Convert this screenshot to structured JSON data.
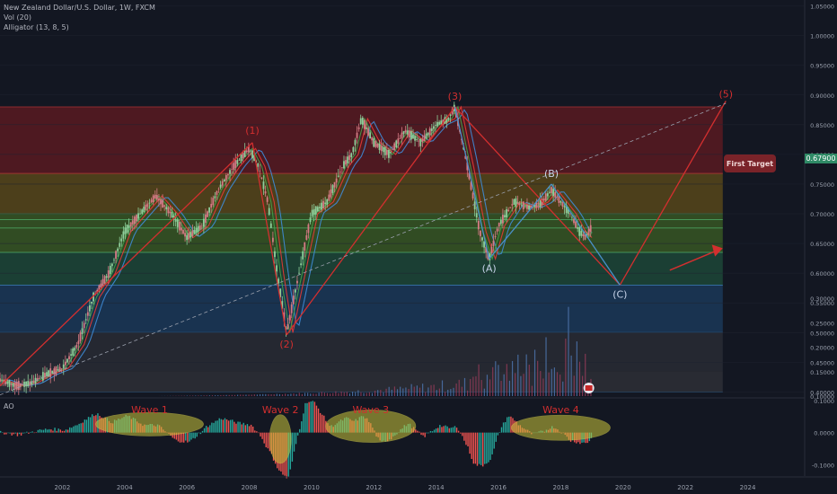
{
  "legend": {
    "symbol": "New Zealand Dollar/U.S. Dollar, 1W, FXCM",
    "volume": "Vol (20)",
    "alligator": "Alligator (13, 8, 5)"
  },
  "ao_panel": {
    "label": "AO"
  },
  "colors": {
    "background": "#131722",
    "wave_red": "#d32f2f",
    "wave_blue": "#4a90c8",
    "ellipse_fill": "#c9c43a",
    "alligator_jaw": "#3f8bd6",
    "alligator_teeth": "#e53935",
    "alligator_lips": "#43a047"
  },
  "annotations": {
    "waves": [
      {
        "label": "(1)",
        "x": 2008.1,
        "y": 0.8198
      },
      {
        "label": "(2)",
        "x": 2009.2,
        "y": 0.496
      },
      {
        "label": "(3)",
        "x": 2014.6,
        "y": 0.88
      },
      {
        "label": "(A)",
        "x": 2015.7,
        "y": 0.624
      },
      {
        "label": "(B)",
        "x": 2017.7,
        "y": 0.75
      },
      {
        "label": "(C)",
        "x": 2019.9,
        "y": 0.58
      },
      {
        "label": "(5)",
        "x": 2023.3,
        "y": 0.89
      }
    ],
    "target_label": "First Target",
    "ao_waves": [
      {
        "label": "Wave 1",
        "x": 2004.8
      },
      {
        "label": "Wave 2",
        "x": 2009.0
      },
      {
        "label": "Wave 3",
        "x": 2011.9
      },
      {
        "label": "Wave 4",
        "x": 2018.0
      }
    ]
  },
  "chart_data": [
    {
      "type": "line",
      "title": "New Zealand Dollar/U.S. Dollar, 1W, FXCM",
      "xlim": [
        2000.0,
        2025.8
      ],
      "ylim": [
        0.393,
        1.06
      ],
      "x_ticks": [
        {
          "value": 2002,
          "label": "2002"
        },
        {
          "value": 2004,
          "label": "2004"
        },
        {
          "value": 2006,
          "label": "2006"
        },
        {
          "value": 2008,
          "label": "2008"
        },
        {
          "value": 2010,
          "label": "2010"
        },
        {
          "value": 2012,
          "label": "2012"
        },
        {
          "value": 2014,
          "label": "2014"
        },
        {
          "value": 2016,
          "label": "2016"
        },
        {
          "value": 2018,
          "label": "2018"
        },
        {
          "value": 2020,
          "label": "2020"
        },
        {
          "value": 2022,
          "label": "2022"
        },
        {
          "value": 2024,
          "label": "2024"
        }
      ],
      "y_ticks": [
        {
          "value": 1.05,
          "label": "1.05000"
        },
        {
          "value": 1.0,
          "label": "1.00000"
        },
        {
          "value": 0.95,
          "label": "0.95000"
        },
        {
          "value": 0.9,
          "label": "0.90000"
        },
        {
          "value": 0.85,
          "label": "0.85000"
        },
        {
          "value": 0.8,
          "label": "0.80000"
        },
        {
          "value": 0.75,
          "label": "0.75000"
        },
        {
          "value": 0.7,
          "label": "0.70000"
        },
        {
          "value": 0.65,
          "label": "0.65000"
        },
        {
          "value": 0.6,
          "label": "0.60000"
        },
        {
          "value": 0.55,
          "label": "0.55000"
        },
        {
          "value": 0.5,
          "label": "0.50000"
        },
        {
          "value": 0.45,
          "label": "0.45000"
        },
        {
          "value": 0.4,
          "label": "0.40000"
        }
      ],
      "last_price": {
        "value": 0.679,
        "label": "0.67900"
      },
      "price": {
        "x": [
          2000.0,
          2000.5,
          2001.0,
          2001.5,
          2002.0,
          2002.5,
          2003.0,
          2003.5,
          2004.0,
          2004.5,
          2005.0,
          2005.5,
          2006.0,
          2006.5,
          2007.0,
          2007.5,
          2008.0,
          2008.3,
          2008.6,
          2008.9,
          2009.2,
          2009.6,
          2010.0,
          2010.5,
          2011.0,
          2011.3,
          2011.6,
          2012.0,
          2012.5,
          2013.0,
          2013.5,
          2014.0,
          2014.4,
          2014.6,
          2015.0,
          2015.4,
          2015.7,
          2016.0,
          2016.5,
          2017.0,
          2017.4,
          2017.7,
          2018.0,
          2018.3,
          2018.6,
          2018.8,
          2019.0
        ],
        "y": [
          0.42,
          0.41,
          0.415,
          0.43,
          0.44,
          0.48,
          0.56,
          0.6,
          0.67,
          0.7,
          0.73,
          0.7,
          0.66,
          0.68,
          0.74,
          0.78,
          0.81,
          0.78,
          0.72,
          0.6,
          0.5,
          0.6,
          0.7,
          0.72,
          0.78,
          0.8,
          0.86,
          0.82,
          0.8,
          0.84,
          0.82,
          0.85,
          0.86,
          0.88,
          0.78,
          0.67,
          0.624,
          0.68,
          0.72,
          0.71,
          0.72,
          0.74,
          0.72,
          0.7,
          0.67,
          0.66,
          0.679
        ]
      }
    },
    {
      "type": "bar",
      "title": "Vol (20)",
      "ylim": [
        0.1,
        0.35
      ],
      "y_ticks": [
        {
          "value": 0.3,
          "label": "0.30000"
        },
        {
          "value": 0.25,
          "label": "0.25000"
        },
        {
          "value": 0.2,
          "label": "0.20000"
        },
        {
          "value": 0.15,
          "label": "0.15000"
        },
        {
          "value": 0.1,
          "label": "0.10000"
        }
      ]
    },
    {
      "type": "bar",
      "title": "AO",
      "ylim": [
        -0.135,
        0.105
      ],
      "y_ticks": [
        {
          "value": 0.1,
          "label": "0.1000"
        },
        {
          "value": 0.0,
          "label": "0.0000"
        },
        {
          "value": -0.1,
          "label": "-0.1000"
        }
      ]
    }
  ]
}
